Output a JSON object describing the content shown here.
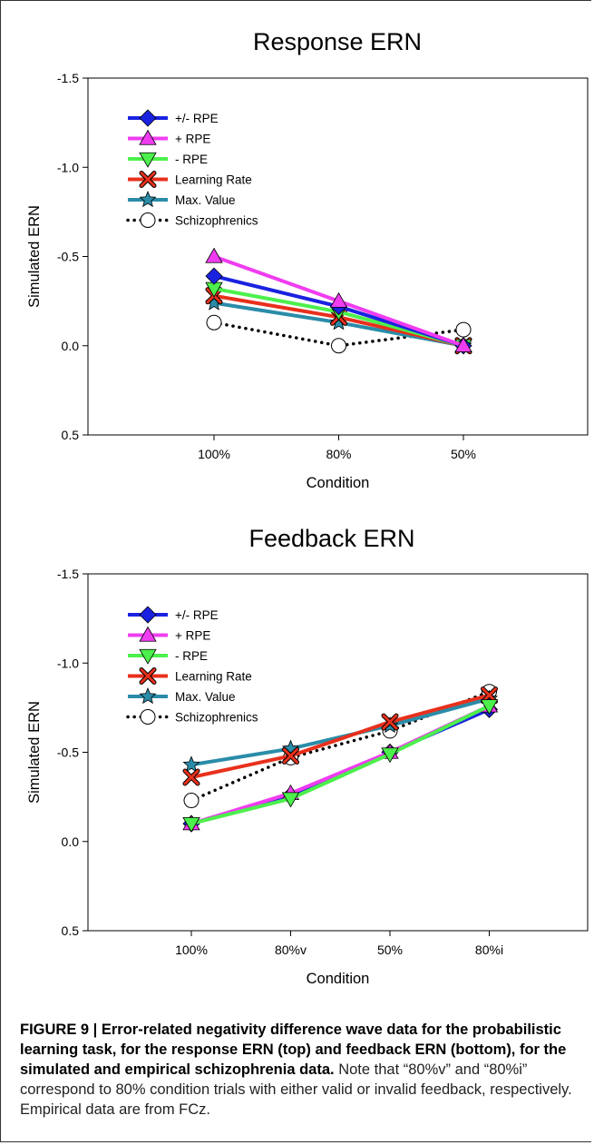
{
  "chart_data": [
    {
      "type": "line",
      "title": "Response ERN",
      "xlabel": "Condition",
      "ylabel": "Simulated ERN",
      "categories": [
        "100%",
        "80%",
        "50%"
      ],
      "yticks": [
        "-1.5",
        "-1.0",
        "-0.5",
        "0.0",
        "0.5"
      ],
      "ylim": [
        0.5,
        -1.5
      ],
      "y_axis_inverted": true,
      "legend_position": "top-left",
      "series": [
        {
          "name": "Schizophrenics",
          "values": [
            -0.13,
            0.0,
            -0.09
          ],
          "color": "#000000",
          "marker": "circle",
          "style": "dotted"
        },
        {
          "name": "Max. Value",
          "values": [
            -0.24,
            -0.13,
            0.0
          ],
          "color": "#2a8ca8",
          "marker": "star",
          "style": "solid"
        },
        {
          "name": "Learning Rate",
          "values": [
            -0.28,
            -0.16,
            0.0
          ],
          "color": "#e8301c",
          "marker": "x",
          "style": "solid"
        },
        {
          "name": "- RPE",
          "values": [
            -0.32,
            -0.19,
            0.0
          ],
          "color": "#4cf04c",
          "marker": "triangle-down",
          "style": "solid"
        },
        {
          "name": "+/- RPE",
          "values": [
            -0.39,
            -0.22,
            0.0
          ],
          "color": "#1a22e0",
          "marker": "diamond",
          "style": "solid"
        },
        {
          "name": "+ RPE",
          "values": [
            -0.5,
            -0.25,
            0.0
          ],
          "color": "#f03cf0",
          "marker": "triangle-up",
          "style": "solid"
        }
      ],
      "legend_order": [
        "+/- RPE",
        "+ RPE",
        "- RPE",
        "Learning Rate",
        "Max. Value",
        "Schizophrenics"
      ]
    },
    {
      "type": "line",
      "title": "Feedback ERN",
      "xlabel": "Condition",
      "ylabel": "Simulated ERN",
      "categories": [
        "100%",
        "80%v",
        "50%",
        "80%i"
      ],
      "yticks": [
        "-1.5",
        "-1.0",
        "-0.5",
        "0.0",
        "0.5"
      ],
      "ylim": [
        0.5,
        -1.5
      ],
      "y_axis_inverted": true,
      "legend_position": "top-left",
      "series": [
        {
          "name": "Schizophrenics",
          "values": [
            -0.23,
            -0.47,
            -0.62,
            -0.84
          ],
          "color": "#000000",
          "marker": "circle",
          "style": "dotted"
        },
        {
          "name": "Max. Value",
          "values": [
            -0.43,
            -0.52,
            -0.65,
            -0.8
          ],
          "color": "#2a8ca8",
          "marker": "star",
          "style": "solid"
        },
        {
          "name": "Learning Rate",
          "values": [
            -0.36,
            -0.48,
            -0.67,
            -0.82
          ],
          "color": "#e8301c",
          "marker": "x",
          "style": "solid"
        },
        {
          "name": "+/- RPE",
          "values": [
            -0.1,
            -0.26,
            -0.5,
            -0.74
          ],
          "color": "#1a22e0",
          "marker": "diamond",
          "style": "solid"
        },
        {
          "name": "+ RPE",
          "values": [
            -0.1,
            -0.27,
            -0.5,
            -0.76
          ],
          "color": "#f03cf0",
          "marker": "triangle-up",
          "style": "solid"
        },
        {
          "name": "- RPE",
          "values": [
            -0.1,
            -0.24,
            -0.49,
            -0.76
          ],
          "color": "#4cf04c",
          "marker": "triangle-down",
          "style": "solid"
        }
      ],
      "legend_order": [
        "+/- RPE",
        "+ RPE",
        "- RPE",
        "Learning Rate",
        "Max. Value",
        "Schizophrenics"
      ]
    }
  ],
  "caption": {
    "bold": "FIGURE 9 | Error-related negativity difference wave data for the probabilistic learning task, for the response ERN (top) and feedback ERN (bottom), for the simulated and empirical schizophrenia data.",
    "normal": "Note that “80%v” and “80%i” correspond to 80% condition trials with either valid or invalid feedback, respectively. Empirical data are from FCz."
  }
}
